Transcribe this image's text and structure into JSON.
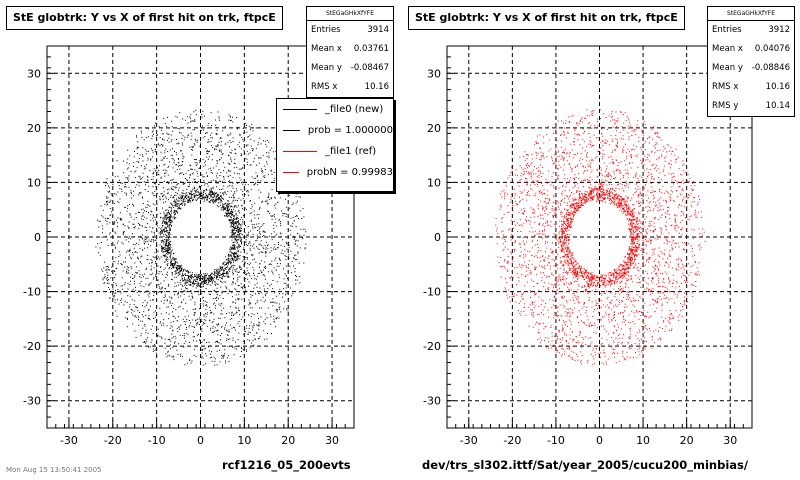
{
  "chart_data": [
    {
      "type": "scatter",
      "title": "StE globtrk: Y vs X of first hit on trk, ftpcE",
      "xlim": [
        -35,
        35
      ],
      "ylim": [
        -35,
        35
      ],
      "x_ticks": [
        "-30",
        "-20",
        "-10",
        "0",
        "10",
        "20",
        "30"
      ],
      "y_ticks": [
        "30",
        "20",
        "10",
        "0",
        "-10",
        "-20",
        "-30"
      ],
      "grid": true,
      "marker_color": "#000000",
      "stats": {
        "name": "StEGaGHkXfYFE",
        "rows": [
          {
            "label": "Entries",
            "value": "3914"
          },
          {
            "label": "Mean x",
            "value": "0.03761"
          },
          {
            "label": "Mean y",
            "value": "-0.08467"
          },
          {
            "label": "RMS x",
            "value": "10.16"
          }
        ]
      },
      "legend": {
        "position": "top-right",
        "entries": [
          {
            "label": "_file0 (new)",
            "color": "#000000"
          },
          {
            "label": "prob = 1.000000",
            "color": "#000000"
          },
          {
            "label": "_file1 (ref)",
            "color": "#ff0000"
          },
          {
            "label": "probN = 0.99983",
            "color": "#ff0000"
          }
        ]
      },
      "footer": "rcf1216_05_200evts",
      "distribution": {
        "inner_radius": 7,
        "outer_radius": 24,
        "points": 3914
      }
    },
    {
      "type": "scatter",
      "title": "StE globtrk: Y vs X of first hit on trk, ftpcE",
      "xlim": [
        -35,
        35
      ],
      "ylim": [
        -35,
        35
      ],
      "x_ticks": [
        "-30",
        "-20",
        "-10",
        "0",
        "10",
        "20",
        "30"
      ],
      "y_ticks": [
        "30",
        "20",
        "10",
        "0",
        "-10",
        "-20",
        "-30"
      ],
      "grid": true,
      "marker_color": "#ff0000",
      "stats": {
        "name": "StEGaGHkXfYFE",
        "rows": [
          {
            "label": "Entries",
            "value": "3912"
          },
          {
            "label": "Mean x",
            "value": "0.04076"
          },
          {
            "label": "Mean y",
            "value": "-0.08846"
          },
          {
            "label": "RMS x",
            "value": "10.16"
          },
          {
            "label": "RMS y",
            "value": "10.14"
          }
        ]
      },
      "footer": "dev/trs_sl302.ittf/Sat/year_2005/cucu200_minbias/",
      "distribution": {
        "inner_radius": 7,
        "outer_radius": 24,
        "points": 3912
      }
    }
  ],
  "stamp": "Mon Aug 15 13:50:41 2005"
}
